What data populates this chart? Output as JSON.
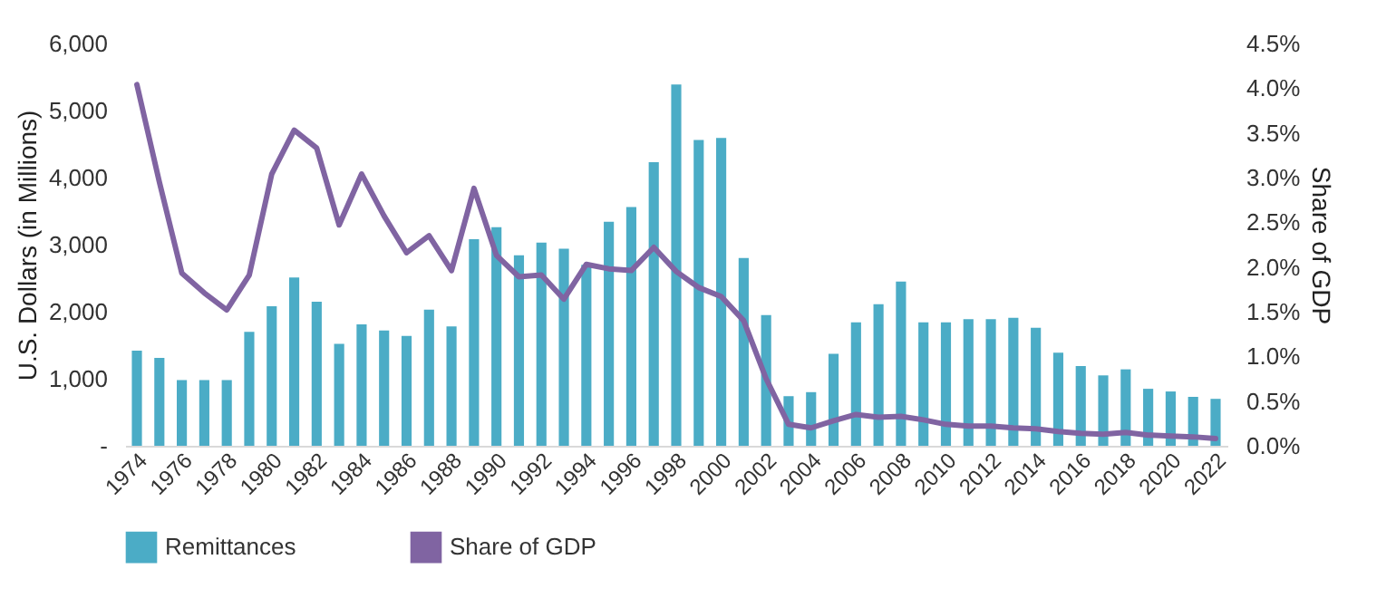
{
  "chart_data": {
    "type": "bar",
    "categories": [
      "1974",
      null,
      "1976",
      null,
      "1978",
      null,
      "1980",
      null,
      "1982",
      null,
      "1984",
      null,
      "1986",
      null,
      "1988",
      null,
      "1990",
      null,
      "1992",
      null,
      "1994",
      null,
      "1996",
      null,
      "1998",
      null,
      "2000",
      null,
      "2002",
      null,
      "2004",
      null,
      "2006",
      null,
      "2008",
      null,
      "2010",
      null,
      "2012",
      null,
      "2014",
      null,
      "2016",
      null,
      "2018",
      null,
      "2020",
      null,
      "2022"
    ],
    "ylabel": "U.S. Dollars (in Millions)",
    "y2label": "Share of GDP",
    "ylim": [
      0,
      6000
    ],
    "yticks": [
      {
        "value": 0,
        "label": "-"
      },
      {
        "value": 1000,
        "label": "1,000"
      },
      {
        "value": 2000,
        "label": "2,000"
      },
      {
        "value": 3000,
        "label": "3,000"
      },
      {
        "value": 4000,
        "label": "4,000"
      },
      {
        "value": 5000,
        "label": "5,000"
      },
      {
        "value": 6000,
        "label": "6,000"
      }
    ],
    "y2lim": [
      0,
      4.5
    ],
    "y2ticks": [
      {
        "value": 0,
        "label": "0.0%"
      },
      {
        "value": 0.5,
        "label": "0.5%"
      },
      {
        "value": 1,
        "label": "1.0%"
      },
      {
        "value": 1.5,
        "label": "1.5%"
      },
      {
        "value": 2,
        "label": "2.0%"
      },
      {
        "value": 2.5,
        "label": "2.5%"
      },
      {
        "value": 3,
        "label": "3.0%"
      },
      {
        "value": 3.5,
        "label": "3.5%"
      },
      {
        "value": 4,
        "label": "4.0%"
      },
      {
        "value": 4.5,
        "label": "4.5%"
      }
    ],
    "grid": false,
    "legend": "bottom",
    "series": [
      {
        "name": "Remittances",
        "color": "#4bacc6",
        "values": [
          1420,
          1310,
          980,
          980,
          980,
          1700,
          2080,
          2510,
          2150,
          1520,
          1810,
          1720,
          1640,
          2030,
          1780,
          3080,
          3260,
          2840,
          3030,
          2940,
          2700,
          3340,
          3560,
          4230,
          5390,
          4560,
          4590,
          2800,
          1950,
          740,
          800,
          1370,
          1840,
          2110,
          2450,
          1840,
          1840,
          1890,
          1890,
          1910,
          1760,
          1390,
          1190,
          1050,
          1140,
          850,
          810,
          730,
          700
        ]
      },
      {
        "name": "Share of GDP",
        "type": "line",
        "axis": "y2",
        "color": "#8064a2",
        "values": [
          4.04,
          2.95,
          1.93,
          1.71,
          1.52,
          1.91,
          3.04,
          3.53,
          3.33,
          2.47,
          3.04,
          2.57,
          2.16,
          2.35,
          1.96,
          2.88,
          2.13,
          1.89,
          1.91,
          1.64,
          2.03,
          1.98,
          1.96,
          2.22,
          1.95,
          1.77,
          1.67,
          1.4,
          0.75,
          0.24,
          0.2,
          0.28,
          0.35,
          0.32,
          0.33,
          0.29,
          0.24,
          0.22,
          0.22,
          0.2,
          0.19,
          0.16,
          0.14,
          0.13,
          0.15,
          0.12,
          0.11,
          0.1,
          0.08
        ]
      }
    ]
  }
}
